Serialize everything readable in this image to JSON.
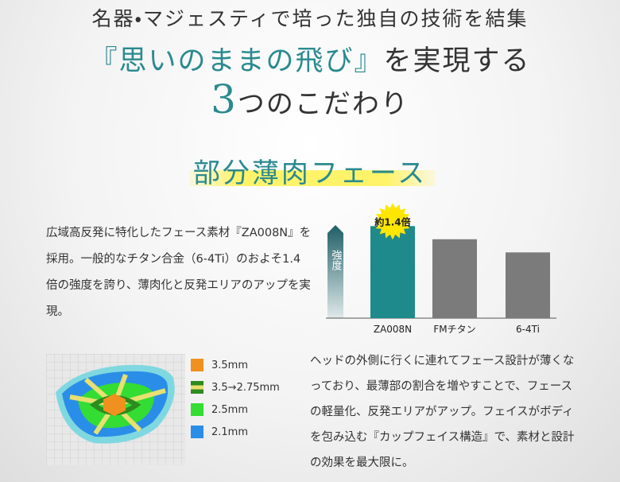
{
  "header": {
    "line1": "名器・マジェスティで培った独自の技術を結集",
    "line2": [
      "『思いのままの飛び』",
      "を実現する"
    ],
    "line3": [
      "3",
      "つのこだわり"
    ]
  },
  "section": {
    "heading": "部分薄肉フェース",
    "paragraph1": [
      "広域高反発に特化したフェース素材『ZA008N』を",
      "採用。一般的なチタン合金（6-4Ti）のおよそ1.4",
      "倍の強度を誇り、薄肉化と反発エリアのアップを実",
      "現。"
    ],
    "paragraph2": [
      "ヘッドの外側に行くに連れてフェース設計が薄くな",
      "っており、最薄部の割合を増やすことで、フェース",
      "の軽量化、反発エリアがアップ。フェイスがボディ",
      "を包み込む『カップフェイス構造』で、素材と設計",
      "の効果を最大限に。"
    ],
    "legend": [
      {
        "label": "3.5mm",
        "color": "#f0901e"
      },
      {
        "label": "3.5→2.75mm",
        "color": "#2e8b1e"
      },
      {
        "label": "2.5mm",
        "color": "#33dd33"
      },
      {
        "label": "2.1mm",
        "color": "#2a8ee8"
      }
    ]
  },
  "chart_data": {
    "type": "bar",
    "ylabel": "強度",
    "categories": [
      "ZA008N",
      "FMチタン",
      "6-4Ti"
    ],
    "values": [
      1.4,
      1.2,
      1
    ],
    "value_labels": [
      "約1.4倍",
      null,
      null
    ],
    "colors": [
      "#1e8a8c",
      "#7b7b7b",
      "#7b7b7b"
    ],
    "ylim": [
      0,
      1.5
    ]
  }
}
